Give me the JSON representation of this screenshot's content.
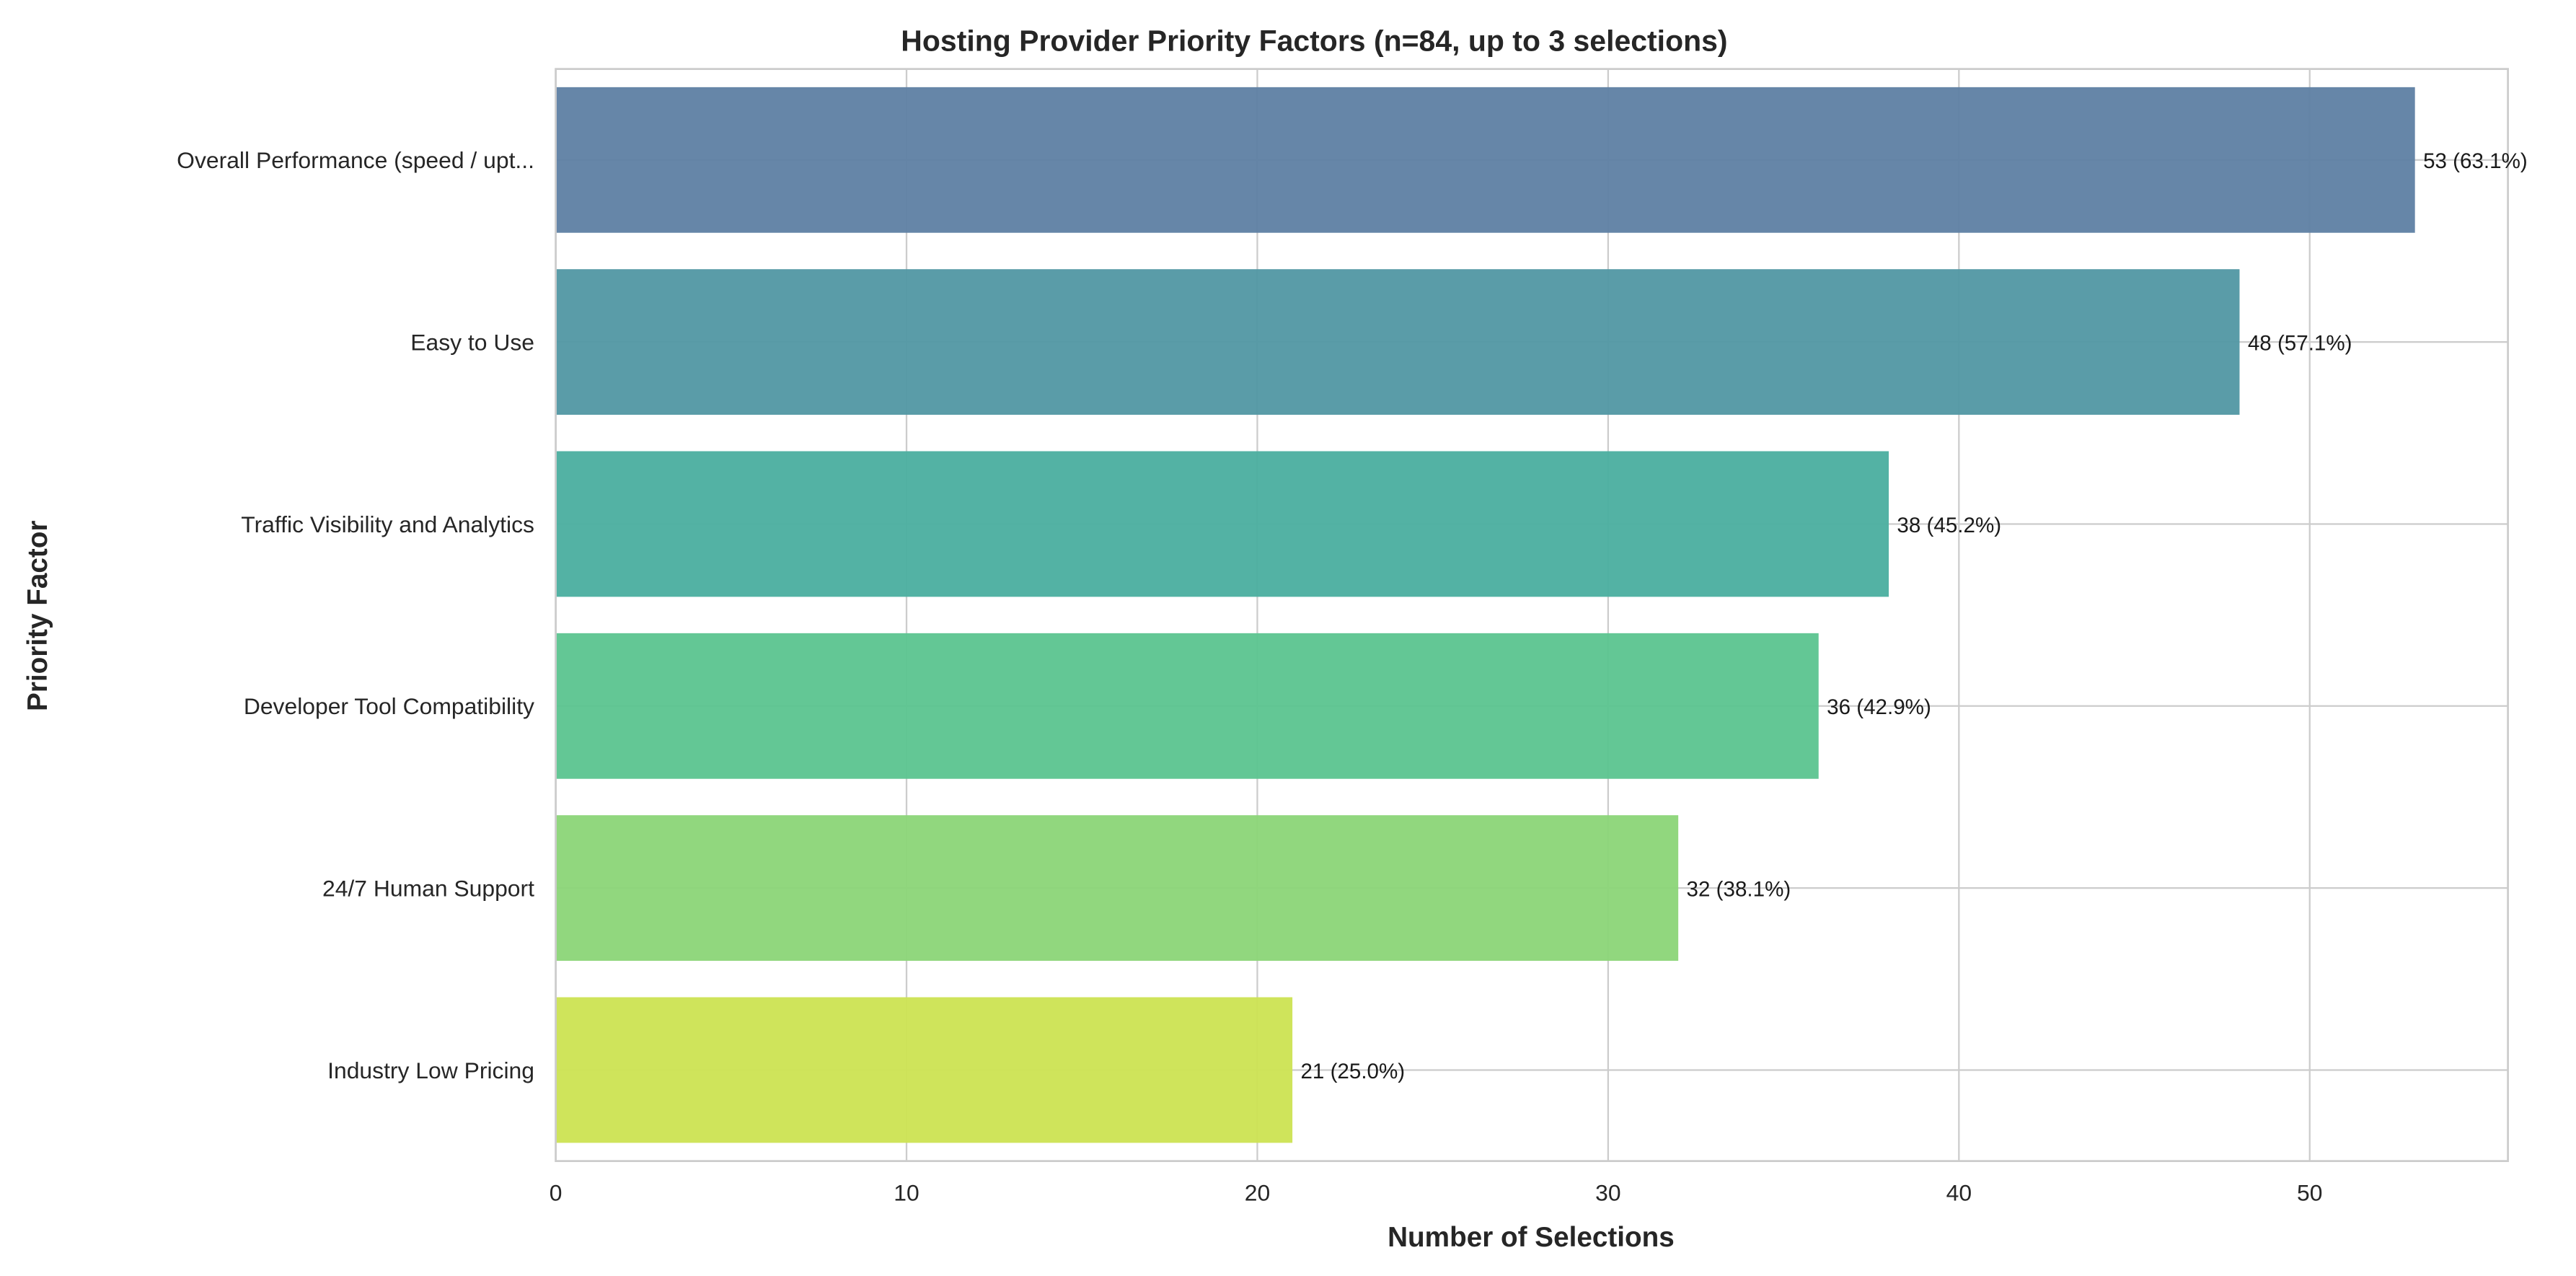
{
  "chart_data": {
    "type": "bar",
    "orientation": "horizontal",
    "title": "Hosting Provider Priority Factors (n=84, up to 3 selections)",
    "xlabel": "Number of Selections",
    "ylabel": "Priority Factor",
    "categories": [
      "Overall Performance (speed / upt...",
      "Easy to Use",
      "Traffic Visibility and Analytics",
      "Developer Tool Compatibility",
      "24/7 Human Support",
      "Industry Low Pricing"
    ],
    "values": [
      53,
      48,
      38,
      36,
      32,
      21
    ],
    "value_labels": [
      "53 (63.1%)",
      "48 (57.1%)",
      "38 (45.2%)",
      "36 (42.9%)",
      "32 (38.1%)",
      "21 (25.0%)"
    ],
    "colors": [
      "#5e7fa3",
      "#5197a3",
      "#4aae9f",
      "#5bc48f",
      "#8bd577",
      "#cce352"
    ],
    "xlim": [
      0,
      55.65
    ],
    "xticks": [
      0,
      10,
      20,
      30,
      40,
      50
    ],
    "xtick_labels": [
      "0",
      "10",
      "20",
      "30",
      "40",
      "50"
    ],
    "grid": true
  }
}
